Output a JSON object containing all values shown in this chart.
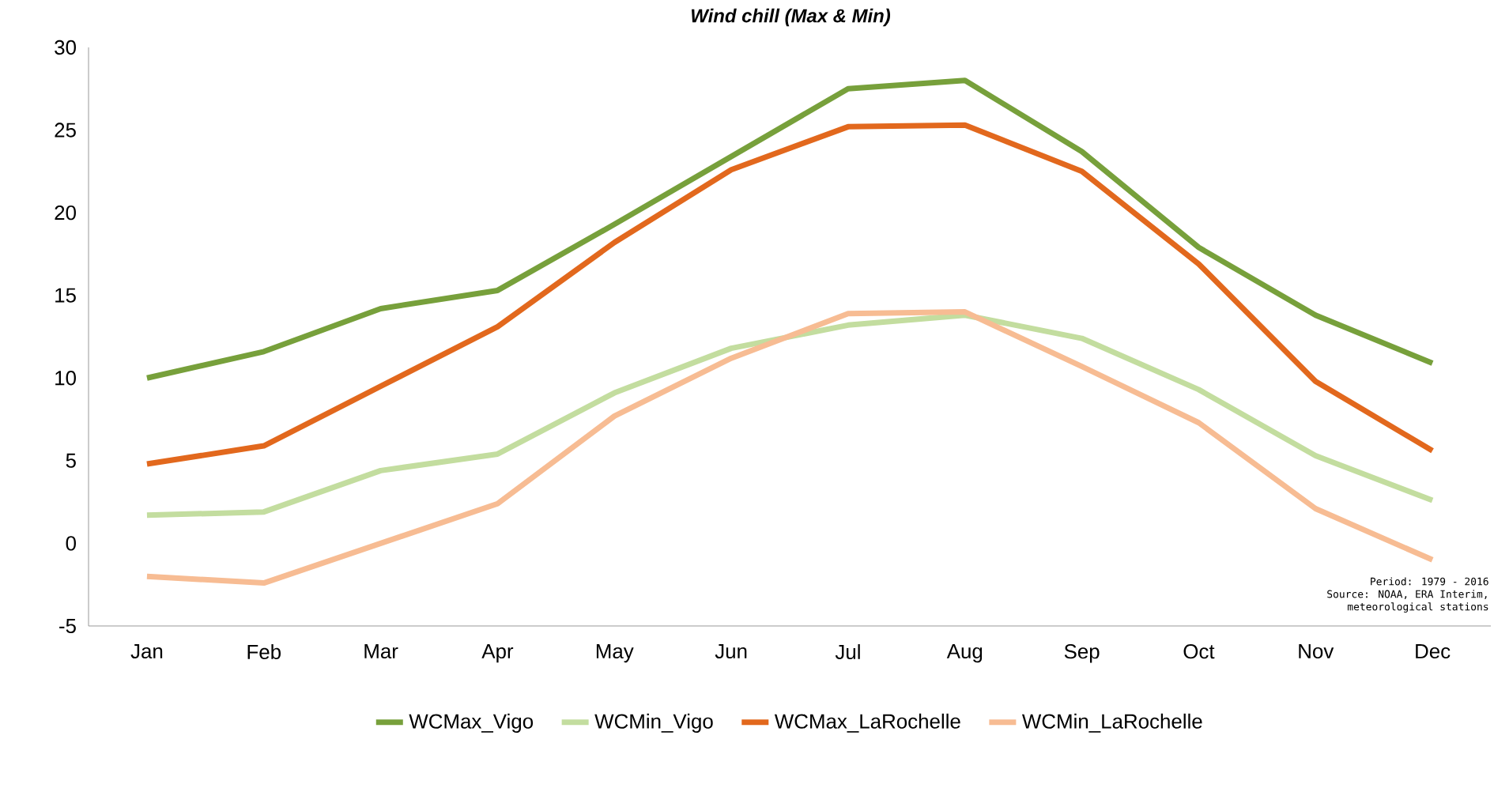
{
  "chart_data": {
    "type": "line",
    "title": "Wind chill (Max & Min)",
    "categories": [
      "Jan",
      "Feb",
      "Mar",
      "Apr",
      "May",
      "Jun",
      "Jul",
      "Aug",
      "Sep",
      "Oct",
      "Nov",
      "Dec"
    ],
    "series": [
      {
        "name": "WCMax_Vigo",
        "color": "#77a03b",
        "values": [
          10.0,
          11.6,
          14.2,
          15.3,
          19.3,
          23.4,
          27.5,
          28.0,
          23.7,
          17.9,
          13.8,
          10.9
        ]
      },
      {
        "name": "WCMin_Vigo",
        "color": "#c3dd9f",
        "values": [
          1.7,
          1.9,
          4.4,
          5.4,
          9.1,
          11.8,
          13.2,
          13.8,
          12.4,
          9.3,
          5.3,
          2.6
        ]
      },
      {
        "name": "WCMax_LaRochelle",
        "color": "#e2681d",
        "values": [
          4.8,
          5.9,
          9.5,
          13.1,
          18.2,
          22.6,
          25.2,
          25.3,
          22.5,
          16.9,
          9.8,
          5.6
        ]
      },
      {
        "name": "WCMin_LaRochelle",
        "color": "#f7bc93",
        "values": [
          -2.0,
          -2.4,
          0.0,
          2.4,
          7.7,
          11.2,
          13.9,
          14.0,
          10.7,
          7.3,
          2.1,
          -1.0
        ]
      }
    ],
    "ylim": [
      -5,
      30
    ],
    "yticks": [
      -5,
      0,
      5,
      10,
      15,
      20,
      25,
      30
    ],
    "legend": "bottom",
    "grid": false,
    "marker": "none",
    "line_style": "solid",
    "annotations": [
      "Period: 1979 - 2016",
      "Source: NOAA, ERA Interim,",
      "meteorological stations"
    ]
  }
}
